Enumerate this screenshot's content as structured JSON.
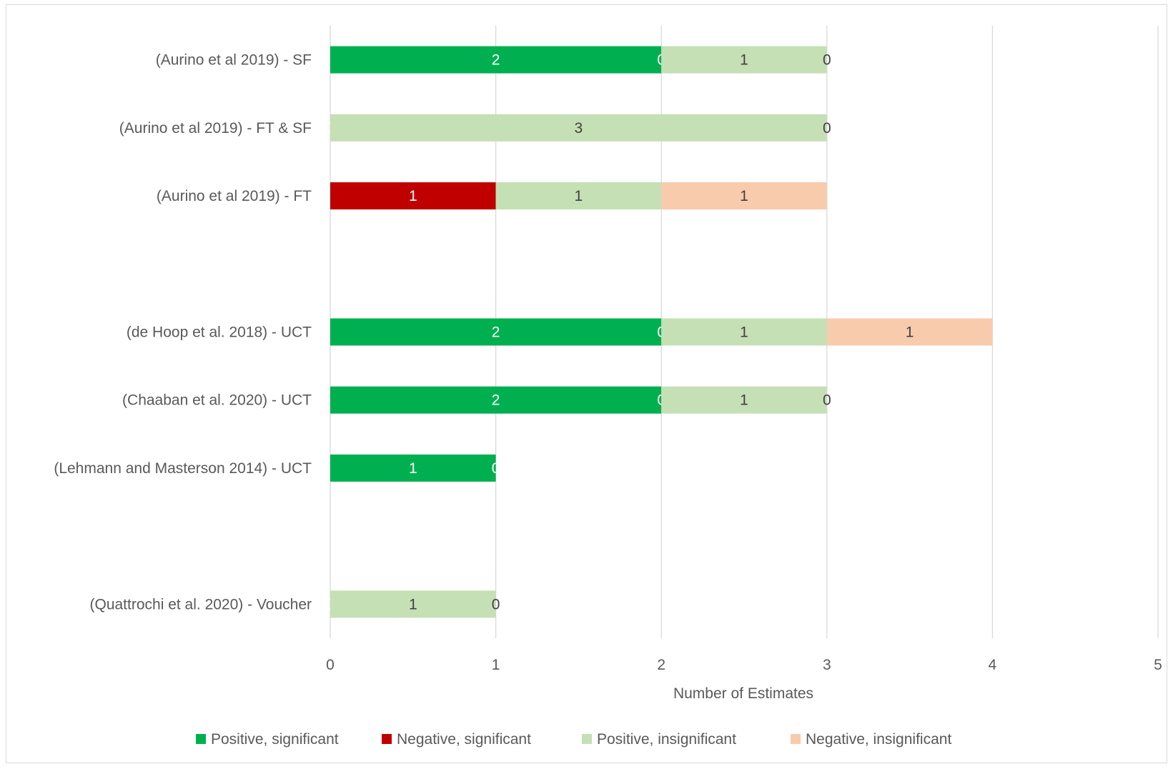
{
  "chart_data": {
    "type": "bar",
    "orientation": "horizontal",
    "stacked": true,
    "title": "",
    "xlabel": "Number of Estimates",
    "ylabel": "",
    "xlim": [
      0,
      5
    ],
    "x_ticks": [
      "0",
      "1",
      "2",
      "3",
      "4",
      "5"
    ],
    "grid": "vertical",
    "legend_position": "bottom",
    "categories": [
      "(Aurino et al 2019) - SF",
      "(Aurino et al 2019) - FT & SF",
      "(Aurino et al 2019) - FT",
      "",
      "(de Hoop et al. 2018) - UCT",
      "(Chaaban et al. 2020) - UCT",
      "(Lehmann and Masterson 2014) - UCT",
      "",
      "(Quattrochi et al. 2020) - Voucher"
    ],
    "series": [
      {
        "name": "Positive, significant",
        "color": "#00b050",
        "label_color": "#ffffff",
        "values": [
          2,
          0,
          null,
          null,
          2,
          2,
          1,
          null,
          0
        ]
      },
      {
        "name": "Negative, significant",
        "color": "#c00000",
        "label_color": "#ffffff",
        "values": [
          0,
          null,
          1,
          null,
          0,
          0,
          0,
          null,
          null
        ]
      },
      {
        "name": "Positive, insignificant",
        "color": "#c5e0b4",
        "label_color": "#404040",
        "values": [
          1,
          3,
          1,
          null,
          1,
          1,
          null,
          null,
          1
        ]
      },
      {
        "name": "Negative, insignificant",
        "color": "#f8cbad",
        "label_color": "#404040",
        "values": [
          0,
          0,
          1,
          null,
          1,
          0,
          null,
          null,
          0
        ]
      }
    ]
  }
}
